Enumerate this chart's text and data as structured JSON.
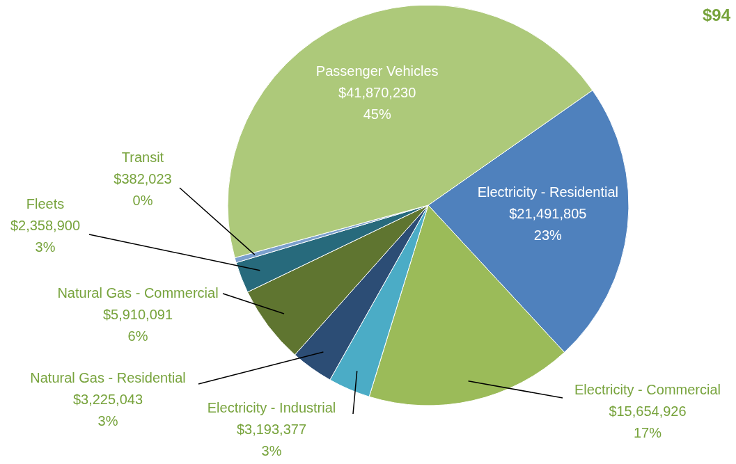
{
  "chart_data": {
    "type": "pie",
    "title": "$94",
    "categories": [
      "Electricity - Residential",
      "Electricity - Commercial",
      "Electricity - Industrial",
      "Natural Gas - Residential",
      "Natural Gas - Commercial",
      "Fleets",
      "Transit",
      "Passenger Vehicles"
    ],
    "values": [
      21491805,
      15654926,
      3193377,
      3225043,
      5910091,
      2358900,
      382023,
      41870230
    ],
    "colors": [
      "#4f81bd",
      "#9bbb59",
      "#4bacc6",
      "#2c4d75",
      "#5f7530",
      "#276a7c",
      "#7ba0cd",
      "#adc97a"
    ],
    "value_labels": [
      "$21,491,805\n23%",
      "$15,654,926\n17%",
      "$3,193,377\n3%",
      "$3,225,043\n3%",
      "$5,910,091\n6%",
      "$2,358,900\n3%",
      "$382,023\n0%",
      "$41,870,230\n45%"
    ],
    "legend": false
  }
}
